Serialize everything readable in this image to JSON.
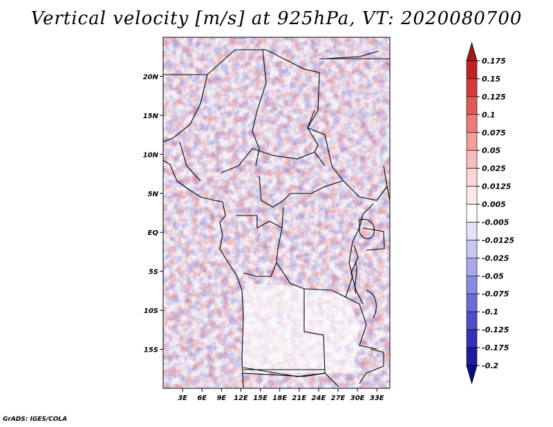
{
  "title": "Vertical velocity [m/s] at 925hPa, VT: 2020080700",
  "footer": "GrADS: IGES/COLA",
  "chart_data": {
    "type": "heatmap",
    "title": "Vertical velocity [m/s] at 925hPa, VT: 2020080700",
    "variable": "Vertical velocity",
    "units": "m/s",
    "level": "925hPa",
    "valid_time": "2020080700",
    "x_ticks": [
      "3E",
      "6E",
      "9E",
      "12E",
      "15E",
      "18E",
      "21E",
      "24E",
      "27E",
      "30E",
      "33E"
    ],
    "x_tick_values": [
      3,
      6,
      9,
      12,
      15,
      18,
      21,
      24,
      27,
      30,
      33
    ],
    "y_ticks": [
      "20N",
      "15N",
      "10N",
      "5N",
      "EQ",
      "5S",
      "10S",
      "15S"
    ],
    "y_tick_values": [
      20,
      15,
      10,
      5,
      0,
      -5,
      -10,
      -15
    ],
    "xlim": [
      0,
      35
    ],
    "ylim": [
      -20,
      25
    ],
    "colorbar": {
      "labels": [
        "0.175",
        "0.15",
        "0.125",
        "0.1",
        "0.075",
        "0.05",
        "0.025",
        "0.0125",
        "0.005",
        "-0.005",
        "-0.0125",
        "-0.025",
        "-0.05",
        "-0.075",
        "-0.1",
        "-0.125",
        "-0.175",
        "-0.2"
      ],
      "colors": [
        "#a01818",
        "#bf2424",
        "#d63a3a",
        "#e25757",
        "#ec7b7b",
        "#f29c9c",
        "#f7bcbc",
        "#fbd6d6",
        "#fde9e9",
        "#ffffff",
        "#e2e2f8",
        "#c7c7f2",
        "#a8a8ea",
        "#8a8ae2",
        "#6c6cd8",
        "#4e4ec8",
        "#3333b4",
        "#1c1c9c",
        "#0c0c86"
      ]
    }
  },
  "icons": {
    "map_borders": "country-borders-icon"
  }
}
